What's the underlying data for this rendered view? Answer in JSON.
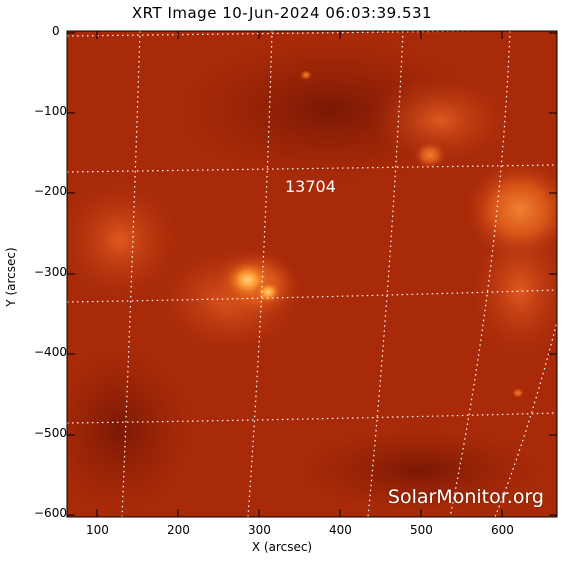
{
  "title": "XRT Image 10-Jun-2024 06:03:39.531",
  "axes": {
    "xlabel": "X (arcsec)",
    "ylabel": "Y (arcsec)",
    "x_ticks": [
      "100",
      "200",
      "300",
      "400",
      "500",
      "600"
    ],
    "y_ticks": [
      "0",
      "−100",
      "−200",
      "−300",
      "−400",
      "−500",
      "−600"
    ]
  },
  "active_region_label": "13704",
  "watermark": "SolarMonitor.org",
  "colors": {
    "background": "#a82a08",
    "bright": "#ffb050",
    "grid": "#ffffff"
  }
}
